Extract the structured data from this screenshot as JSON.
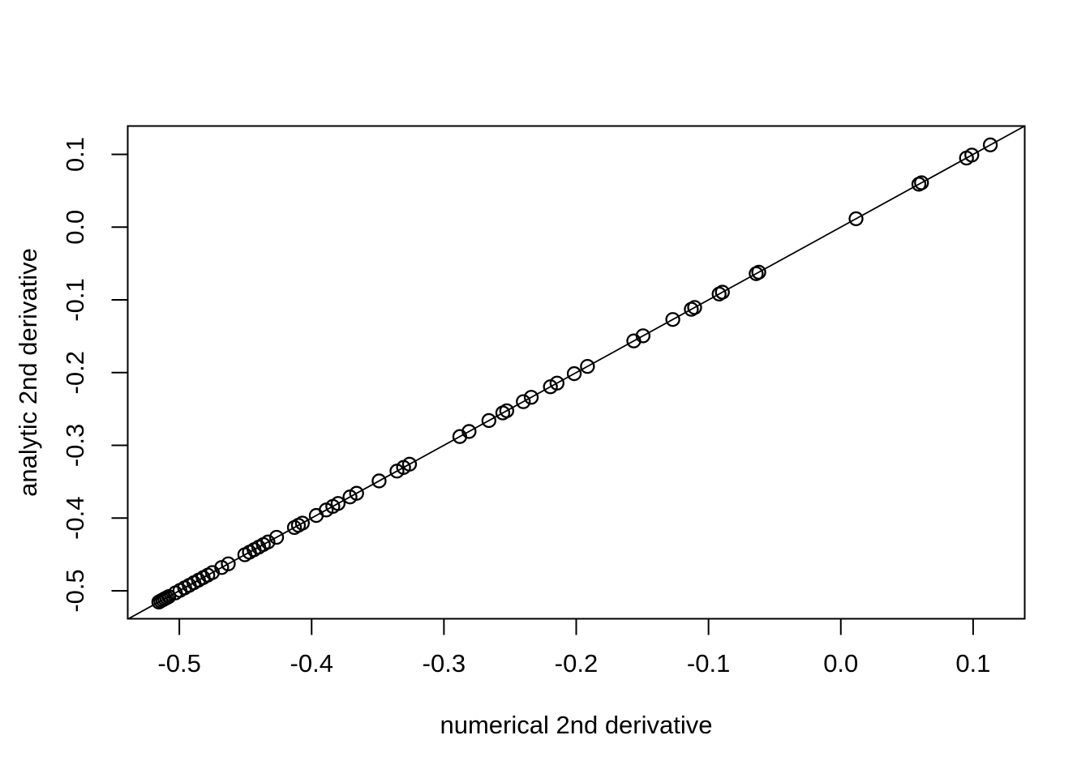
{
  "figure": {
    "background_color": "#ffffff",
    "foreground_color": "#000000"
  },
  "chart_data": {
    "type": "scatter",
    "title": "",
    "xlabel": "numerical 2nd derivative",
    "ylabel": "analytic 2nd derivative",
    "xlim": [
      -0.539,
      0.139
    ],
    "ylim": [
      -0.5385,
      0.139
    ],
    "x_ticks": [
      -0.5,
      -0.4,
      -0.3,
      -0.2,
      -0.1,
      0.0,
      0.1
    ],
    "y_ticks": [
      0.1,
      0.0,
      -0.1,
      -0.2,
      -0.3,
      -0.4,
      -0.5
    ],
    "x_tick_labels": [
      "-0.5",
      "-0.4",
      "-0.3",
      "-0.2",
      "-0.1",
      "0.0",
      "0.1"
    ],
    "y_tick_labels": [
      "0.1",
      "0.0",
      "-0.1",
      "-0.2",
      "-0.3",
      "-0.4",
      "-0.5"
    ],
    "grid": false,
    "legend_position": "none",
    "marker": {
      "shape": "open-circle",
      "color": "#000000",
      "radius_px": 8
    },
    "reference_line": {
      "slope": 1,
      "intercept": 0,
      "description": "identity line y = x"
    },
    "points_lie_on_identity_line": true,
    "x": [
      -0.5155,
      -0.514,
      -0.5125,
      -0.511,
      -0.5095,
      -0.508,
      -0.503,
      -0.4995,
      -0.496,
      -0.4925,
      -0.489,
      -0.4855,
      -0.482,
      -0.4785,
      -0.475,
      -0.468,
      -0.463,
      -0.4505,
      -0.447,
      -0.4435,
      -0.44,
      -0.4365,
      -0.433,
      -0.4265,
      -0.413,
      -0.41,
      -0.407,
      -0.3965,
      -0.389,
      -0.384,
      -0.38,
      -0.371,
      -0.366,
      -0.349,
      -0.3355,
      -0.3305,
      -0.326,
      -0.288,
      -0.281,
      -0.266,
      -0.2555,
      -0.2525,
      -0.24,
      -0.234,
      -0.2195,
      -0.2145,
      -0.2015,
      -0.1915,
      -0.1565,
      -0.1495,
      -0.127,
      -0.113,
      -0.1105,
      -0.092,
      -0.0895,
      -0.064,
      -0.062,
      0.0115,
      0.059,
      0.061,
      0.095,
      0.099,
      0.113
    ],
    "y": [
      -0.5155,
      -0.514,
      -0.5125,
      -0.511,
      -0.5095,
      -0.508,
      -0.503,
      -0.4995,
      -0.496,
      -0.4925,
      -0.489,
      -0.4855,
      -0.482,
      -0.4785,
      -0.475,
      -0.468,
      -0.463,
      -0.4505,
      -0.447,
      -0.4435,
      -0.44,
      -0.4365,
      -0.433,
      -0.4265,
      -0.413,
      -0.41,
      -0.407,
      -0.3965,
      -0.389,
      -0.384,
      -0.38,
      -0.371,
      -0.366,
      -0.349,
      -0.3355,
      -0.3305,
      -0.326,
      -0.288,
      -0.281,
      -0.266,
      -0.2555,
      -0.2525,
      -0.24,
      -0.234,
      -0.2195,
      -0.2145,
      -0.2015,
      -0.1915,
      -0.1565,
      -0.1495,
      -0.127,
      -0.113,
      -0.1105,
      -0.092,
      -0.0895,
      -0.064,
      -0.062,
      0.0115,
      0.059,
      0.061,
      0.095,
      0.099,
      0.113
    ]
  }
}
